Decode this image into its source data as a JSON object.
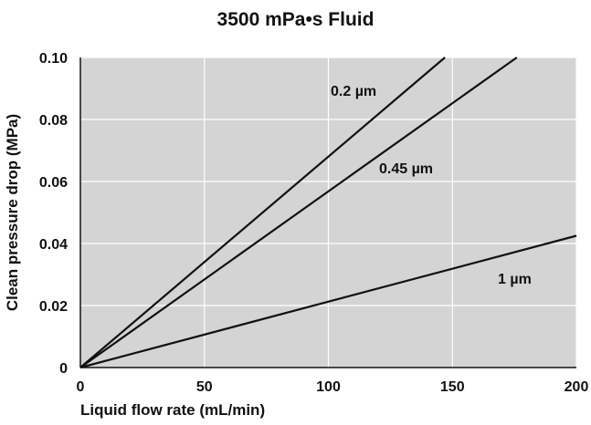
{
  "chart_data": {
    "type": "line",
    "title": "3500 mPa•s Fluid",
    "xlabel": "Liquid flow rate (mL/min)",
    "ylabel": "Clean pressure drop (MPa)",
    "xlim": [
      0,
      200
    ],
    "ylim": [
      0,
      0.1
    ],
    "xticks": [
      "0",
      "50",
      "100",
      "150",
      "200"
    ],
    "yticks": [
      "0",
      "0.02",
      "0.04",
      "0.06",
      "0.08",
      "0.10"
    ],
    "grid": true,
    "series": [
      {
        "name": "0.2 µm",
        "points": [
          [
            0,
            0
          ],
          [
            147,
            0.1
          ]
        ]
      },
      {
        "name": "0.45 µm",
        "points": [
          [
            0,
            0
          ],
          [
            176,
            0.1
          ]
        ]
      },
      {
        "name": "1 µm",
        "points": [
          [
            0,
            0
          ],
          [
            200,
            0.0425
          ]
        ]
      }
    ]
  },
  "colors": {
    "plot_background": "#d4d4d4",
    "grid": "#ffffff",
    "line": "#111111"
  }
}
